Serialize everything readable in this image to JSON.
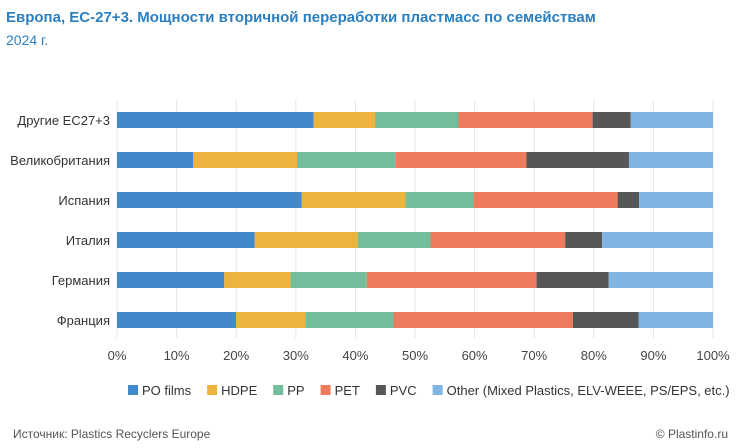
{
  "header": {
    "title": "Европа, ЕС-27+3. Мощности вторичной переработки пластмасс по семействам",
    "subtitle": "2024 г."
  },
  "footer": {
    "source": "Источник:  Plastics Recyclers Europe",
    "credit": "© Plastinfo.ru"
  },
  "chart_data": {
    "type": "bar",
    "orientation": "horizontal",
    "stacked": "percent",
    "categories": [
      "Другие ЕС27+3",
      "Великобритания",
      "Испания",
      "Италия",
      "Германия",
      "Франция"
    ],
    "xlim": [
      0,
      100
    ],
    "xticks": [
      "0%",
      "10%",
      "20%",
      "30%",
      "40%",
      "50%",
      "60%",
      "70%",
      "80%",
      "90%",
      "100%"
    ],
    "grid": true,
    "legend_position": "bottom",
    "series": [
      {
        "name": "PO films",
        "color": "#4189cb",
        "values": [
          33.0,
          12.8,
          31.0,
          23.1,
          18.0,
          20.0
        ]
      },
      {
        "name": "HDPE",
        "color": "#eeb33d",
        "values": [
          10.3,
          17.4,
          17.4,
          17.3,
          11.1,
          11.6
        ]
      },
      {
        "name": "PP",
        "color": "#72be9a",
        "values": [
          14.0,
          16.6,
          11.4,
          12.2,
          12.8,
          14.8
        ]
      },
      {
        "name": "PET",
        "color": "#ed7b5d",
        "values": [
          22.5,
          21.9,
          24.2,
          22.6,
          28.5,
          30.1
        ]
      },
      {
        "name": "PVC",
        "color": "#575757",
        "values": [
          6.4,
          17.2,
          3.6,
          6.2,
          12.1,
          11.0
        ]
      },
      {
        "name": "Other (Mixed Plastics, ELV-WEEE, PS/EPS, etc.)",
        "color": "#80b5e1",
        "values": [
          13.8,
          14.1,
          12.4,
          18.6,
          17.5,
          12.5
        ]
      }
    ]
  }
}
